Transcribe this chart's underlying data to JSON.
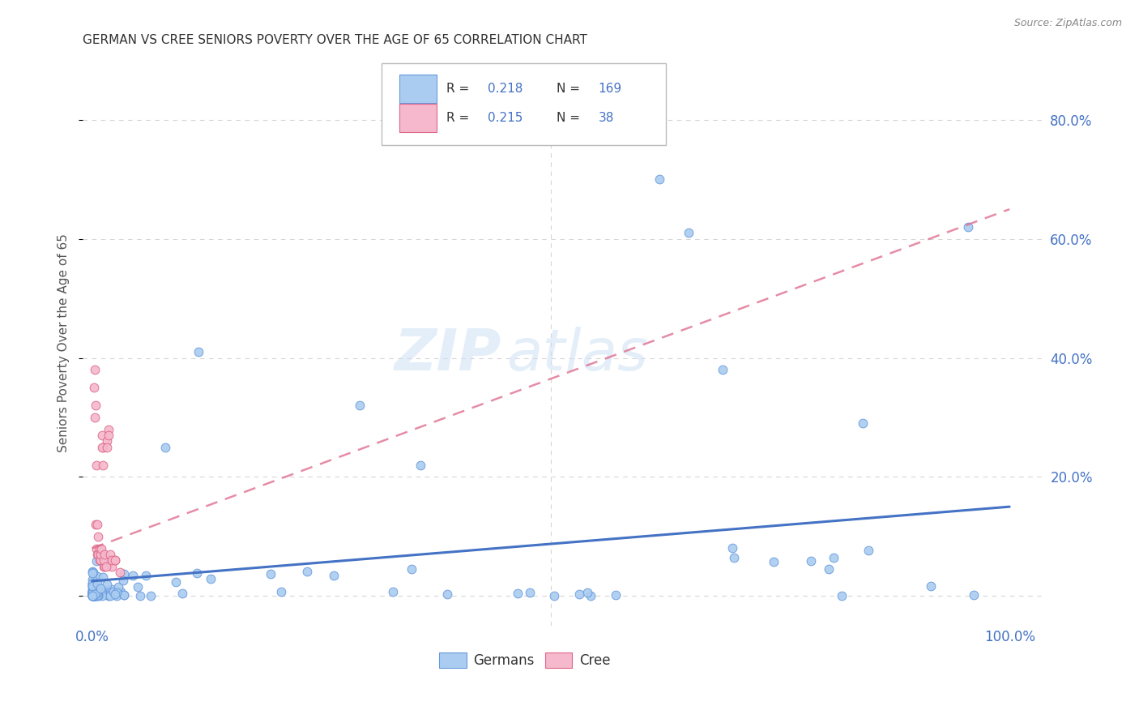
{
  "title": "GERMAN VS CREE SENIORS POVERTY OVER THE AGE OF 65 CORRELATION CHART",
  "source": "Source: ZipAtlas.com",
  "ylabel": "Seniors Poverty Over the Age of 65",
  "german_color": "#aaccf0",
  "german_edge": "#6699dd",
  "cree_color": "#f5b8cc",
  "cree_edge": "#dd6688",
  "german_line_color": "#4472c4",
  "cree_line_color": "#dd6688",
  "R_german": 0.218,
  "N_german": 169,
  "R_cree": 0.215,
  "N_cree": 38,
  "watermark_zip": "ZIP",
  "watermark_atlas": "atlas",
  "legend_german": "Germans",
  "legend_cree": "Cree",
  "background_color": "#ffffff",
  "grid_color": "#cccccc",
  "title_color": "#333333",
  "axis_label_color": "#555555",
  "tick_label_color": "#4472c4",
  "text_dark": "#333333",
  "text_blue": "#4472c4"
}
